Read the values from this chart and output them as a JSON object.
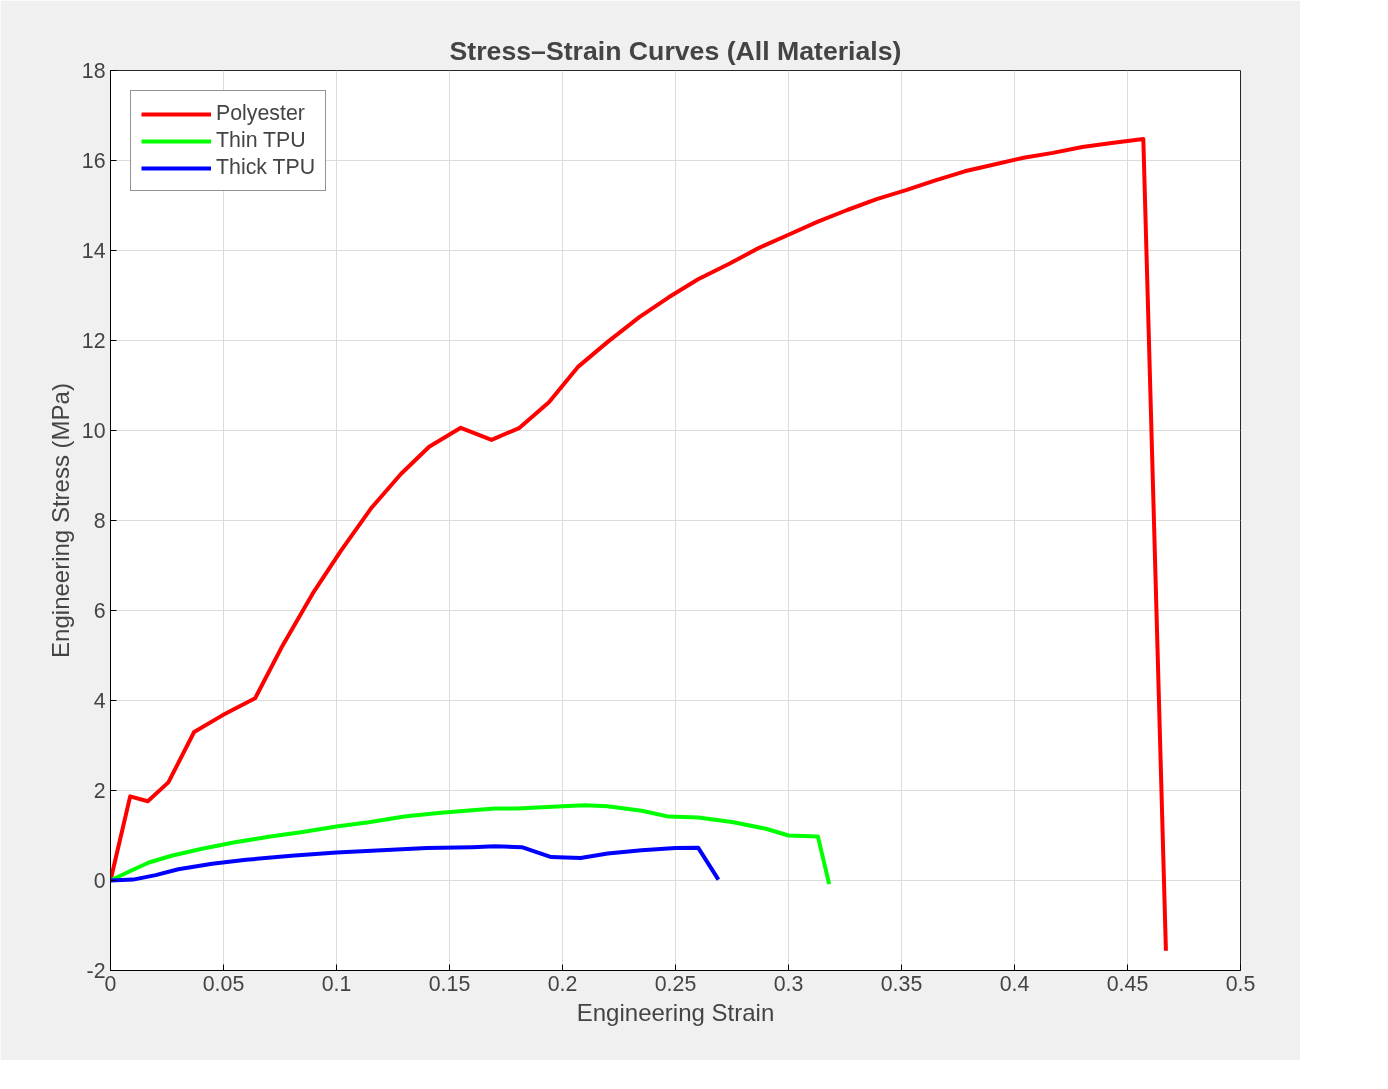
{
  "chart_data": {
    "type": "line",
    "title": "Stress–Strain Curves (All Materials)",
    "xlabel": "Engineering Strain",
    "ylabel": "Engineering Stress (MPa)",
    "xlim": [
      0,
      0.5
    ],
    "ylim": [
      -2,
      18
    ],
    "xticks": [
      0,
      0.05,
      0.1,
      0.15,
      0.2,
      0.25,
      0.3,
      0.35,
      0.4,
      0.45,
      0.5
    ],
    "yticks": [
      -2,
      0,
      2,
      4,
      6,
      8,
      10,
      12,
      14,
      16,
      18
    ],
    "grid": true,
    "legend": "top left",
    "line_style": "solid",
    "marker": "none",
    "series": [
      {
        "name": "Polyester",
        "color": "#ff0000",
        "x": [
          0,
          0.0087,
          0.0165,
          0.0256,
          0.037,
          0.0495,
          0.064,
          0.0756,
          0.0895,
          0.102,
          0.1156,
          0.1286,
          0.141,
          0.155,
          0.1686,
          0.181,
          0.194,
          0.207,
          0.22,
          0.234,
          0.247,
          0.26,
          0.274,
          0.287,
          0.3,
          0.313,
          0.326,
          0.339,
          0.352,
          0.365,
          0.378,
          0.391,
          0.404,
          0.417,
          0.43,
          0.443,
          0.457,
          0.467
        ],
        "values": [
          0,
          1.87,
          1.76,
          2.18,
          3.3,
          3.67,
          4.05,
          5.17,
          6.38,
          7.33,
          8.29,
          9.04,
          9.64,
          10.06,
          9.79,
          10.06,
          10.63,
          11.42,
          11.97,
          12.52,
          12.96,
          13.36,
          13.71,
          14.06,
          14.35,
          14.64,
          14.9,
          15.14,
          15.34,
          15.56,
          15.76,
          15.91,
          16.06,
          16.17,
          16.3,
          16.39,
          16.48,
          -1.56
        ]
      },
      {
        "name": "Thin TPU",
        "color": "#00ff00",
        "x": [
          0,
          0.0083,
          0.017,
          0.027,
          0.04,
          0.055,
          0.07,
          0.085,
          0.1,
          0.115,
          0.13,
          0.145,
          0.16,
          0.17,
          0.18,
          0.2,
          0.21,
          0.22,
          0.235,
          0.247,
          0.26,
          0.275,
          0.29,
          0.3,
          0.313,
          0.318
        ],
        "values": [
          0,
          0.2,
          0.4,
          0.55,
          0.7,
          0.85,
          0.97,
          1.08,
          1.2,
          1.3,
          1.42,
          1.5,
          1.56,
          1.6,
          1.6,
          1.65,
          1.67,
          1.65,
          1.55,
          1.42,
          1.4,
          1.3,
          1.15,
          1.0,
          0.98,
          -0.08
        ]
      },
      {
        "name": "Thick TPU",
        "color": "#0000ff",
        "x": [
          0,
          0.01,
          0.02,
          0.03,
          0.045,
          0.06,
          0.08,
          0.1,
          0.12,
          0.14,
          0.16,
          0.17,
          0.182,
          0.195,
          0.208,
          0.22,
          0.235,
          0.25,
          0.26,
          0.269
        ],
        "values": [
          0,
          0.02,
          0.12,
          0.25,
          0.37,
          0.46,
          0.55,
          0.62,
          0.67,
          0.72,
          0.74,
          0.76,
          0.74,
          0.52,
          0.5,
          0.6,
          0.67,
          0.72,
          0.73,
          0.02
        ]
      }
    ]
  }
}
